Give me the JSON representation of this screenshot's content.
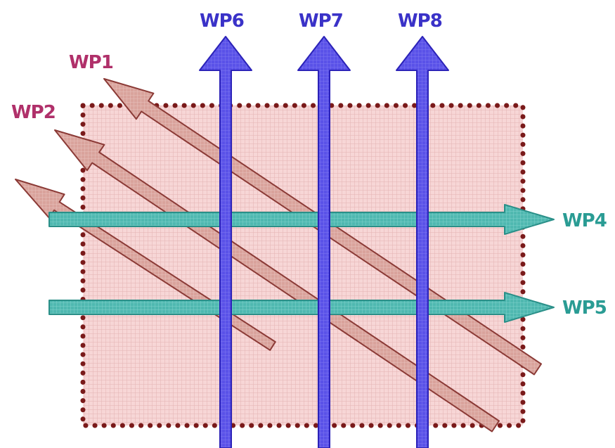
{
  "diagram": {
    "colors": {
      "area_fill": "#f7d6d6",
      "area_grid": "#e3b3b3",
      "area_border_dots": "#7a1a1a",
      "diagonal_arrow_fill": "#d9a39c",
      "diagonal_arrow_stroke": "#8b3a36",
      "vertical_arrow_fill": "#5a52e8",
      "vertical_arrow_stroke": "#2b22b8",
      "horizontal_arrow_fill": "#4fb8b0",
      "horizontal_arrow_stroke": "#2a8f88",
      "label_diagonal": "#b0306a",
      "label_vertical": "#3a32c8",
      "label_horizontal": "#2a9c94"
    },
    "diagonal_paths": [
      {
        "id": "wp1",
        "label": "WP1"
      },
      {
        "id": "wp2",
        "label": "WP2"
      },
      {
        "id": "wp3",
        "label": ""
      }
    ],
    "vertical_paths": [
      {
        "id": "wp6",
        "label": "WP6"
      },
      {
        "id": "wp7",
        "label": "WP7"
      },
      {
        "id": "wp8",
        "label": "WP8"
      }
    ],
    "horizontal_paths": [
      {
        "id": "wp4",
        "label": "WP4"
      },
      {
        "id": "wp5",
        "label": "WP5"
      }
    ]
  }
}
